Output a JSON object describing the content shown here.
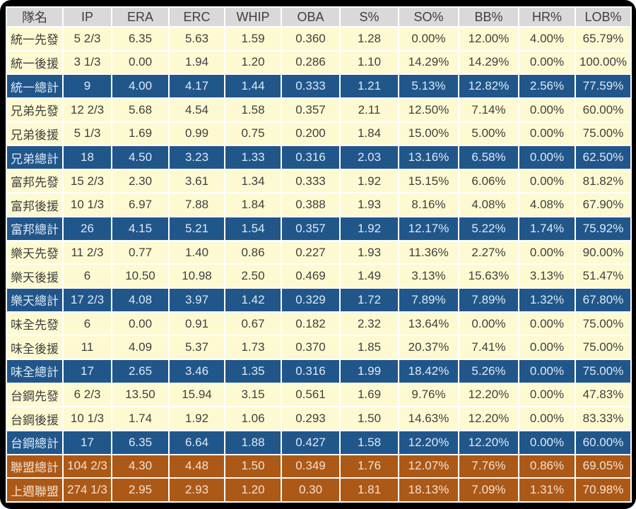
{
  "colors": {
    "frame": "#000000",
    "grid": "#ffffff",
    "header_bg": "#d9d9d9",
    "header_text": "#404040",
    "row_bg": "#fdfad2",
    "row_text": "#404040",
    "team_total_bg": "#21568a",
    "team_total_text": "#dceaf6",
    "league_bg": "#ac5817",
    "league_text": "#f4e2cf"
  },
  "chart_data": {
    "type": "table",
    "columns": [
      "隊名",
      "IP",
      "ERA",
      "ERC",
      "WHIP",
      "OBA",
      "S%",
      "SO%",
      "BB%",
      "HR%",
      "LOB%"
    ],
    "rows": [
      {
        "label": "統一先發",
        "style": "normal",
        "values": [
          "5 2/3",
          "6.35",
          "5.63",
          "1.59",
          "0.360",
          "1.28",
          "0.00%",
          "12.00%",
          "4.00%",
          "65.79%"
        ]
      },
      {
        "label": "統一後援",
        "style": "normal",
        "values": [
          "3 1/3",
          "0.00",
          "1.94",
          "1.20",
          "0.286",
          "1.10",
          "14.29%",
          "14.29%",
          "0.00%",
          "100.00%"
        ]
      },
      {
        "label": "統一總計",
        "style": "total",
        "values": [
          "9",
          "4.00",
          "4.17",
          "1.44",
          "0.333",
          "1.21",
          "5.13%",
          "12.82%",
          "2.56%",
          "77.59%"
        ]
      },
      {
        "label": "兄弟先發",
        "style": "normal",
        "values": [
          "12 2/3",
          "5.68",
          "4.54",
          "1.58",
          "0.357",
          "2.11",
          "12.50%",
          "7.14%",
          "0.00%",
          "60.00%"
        ]
      },
      {
        "label": "兄弟後援",
        "style": "normal",
        "values": [
          "5 1/3",
          "1.69",
          "0.99",
          "0.75",
          "0.200",
          "1.84",
          "15.00%",
          "5.00%",
          "0.00%",
          "75.00%"
        ]
      },
      {
        "label": "兄弟總計",
        "style": "total",
        "values": [
          "18",
          "4.50",
          "3.23",
          "1.33",
          "0.316",
          "2.03",
          "13.16%",
          "6.58%",
          "0.00%",
          "62.50%"
        ]
      },
      {
        "label": "富邦先發",
        "style": "normal",
        "values": [
          "15 2/3",
          "2.30",
          "3.61",
          "1.34",
          "0.333",
          "1.92",
          "15.15%",
          "6.06%",
          "0.00%",
          "81.82%"
        ]
      },
      {
        "label": "富邦後援",
        "style": "normal",
        "values": [
          "10 1/3",
          "6.97",
          "7.88",
          "1.84",
          "0.388",
          "1.93",
          "8.16%",
          "4.08%",
          "4.08%",
          "67.90%"
        ]
      },
      {
        "label": "富邦總計",
        "style": "total",
        "values": [
          "26",
          "4.15",
          "5.21",
          "1.54",
          "0.357",
          "1.92",
          "12.17%",
          "5.22%",
          "1.74%",
          "75.92%"
        ]
      },
      {
        "label": "樂天先發",
        "style": "normal",
        "values": [
          "11 2/3",
          "0.77",
          "1.40",
          "0.86",
          "0.227",
          "1.93",
          "11.36%",
          "2.27%",
          "0.00%",
          "90.00%"
        ]
      },
      {
        "label": "樂天後援",
        "style": "normal",
        "values": [
          "6",
          "10.50",
          "10.98",
          "2.50",
          "0.469",
          "1.49",
          "3.13%",
          "15.63%",
          "3.13%",
          "51.47%"
        ]
      },
      {
        "label": "樂天總計",
        "style": "total",
        "values": [
          "17 2/3",
          "4.08",
          "3.97",
          "1.42",
          "0.329",
          "1.72",
          "7.89%",
          "7.89%",
          "1.32%",
          "67.80%"
        ]
      },
      {
        "label": "味全先發",
        "style": "normal",
        "values": [
          "6",
          "0.00",
          "0.91",
          "0.67",
          "0.182",
          "2.32",
          "13.64%",
          "0.00%",
          "0.00%",
          "75.00%"
        ]
      },
      {
        "label": "味全後援",
        "style": "normal",
        "values": [
          "11",
          "4.09",
          "5.37",
          "1.73",
          "0.370",
          "1.85",
          "20.37%",
          "7.41%",
          "0.00%",
          "75.00%"
        ]
      },
      {
        "label": "味全總計",
        "style": "total",
        "values": [
          "17",
          "2.65",
          "3.46",
          "1.35",
          "0.316",
          "1.99",
          "18.42%",
          "5.26%",
          "0.00%",
          "75.00%"
        ]
      },
      {
        "label": "台鋼先發",
        "style": "normal",
        "values": [
          "6 2/3",
          "13.50",
          "15.94",
          "3.15",
          "0.561",
          "1.69",
          "9.76%",
          "12.20%",
          "0.00%",
          "47.83%"
        ]
      },
      {
        "label": "台鋼後援",
        "style": "normal",
        "values": [
          "10 1/3",
          "1.74",
          "1.92",
          "1.06",
          "0.293",
          "1.50",
          "14.63%",
          "12.20%",
          "0.00%",
          "83.33%"
        ]
      },
      {
        "label": "台鋼總計",
        "style": "total",
        "values": [
          "17",
          "6.35",
          "6.64",
          "1.88",
          "0.427",
          "1.58",
          "12.20%",
          "12.20%",
          "0.00%",
          "60.00%"
        ]
      },
      {
        "label": "聯盟總計",
        "style": "league",
        "values": [
          "104 2/3",
          "4.30",
          "4.48",
          "1.50",
          "0.349",
          "1.76",
          "12.07%",
          "7.76%",
          "0.86%",
          "69.05%"
        ]
      },
      {
        "label": "上週聯盟",
        "style": "league",
        "values": [
          "274 1/3",
          "2.95",
          "2.93",
          "1.20",
          "0.30",
          "1.81",
          "18.13%",
          "7.09%",
          "1.31%",
          "70.98%"
        ]
      }
    ]
  }
}
